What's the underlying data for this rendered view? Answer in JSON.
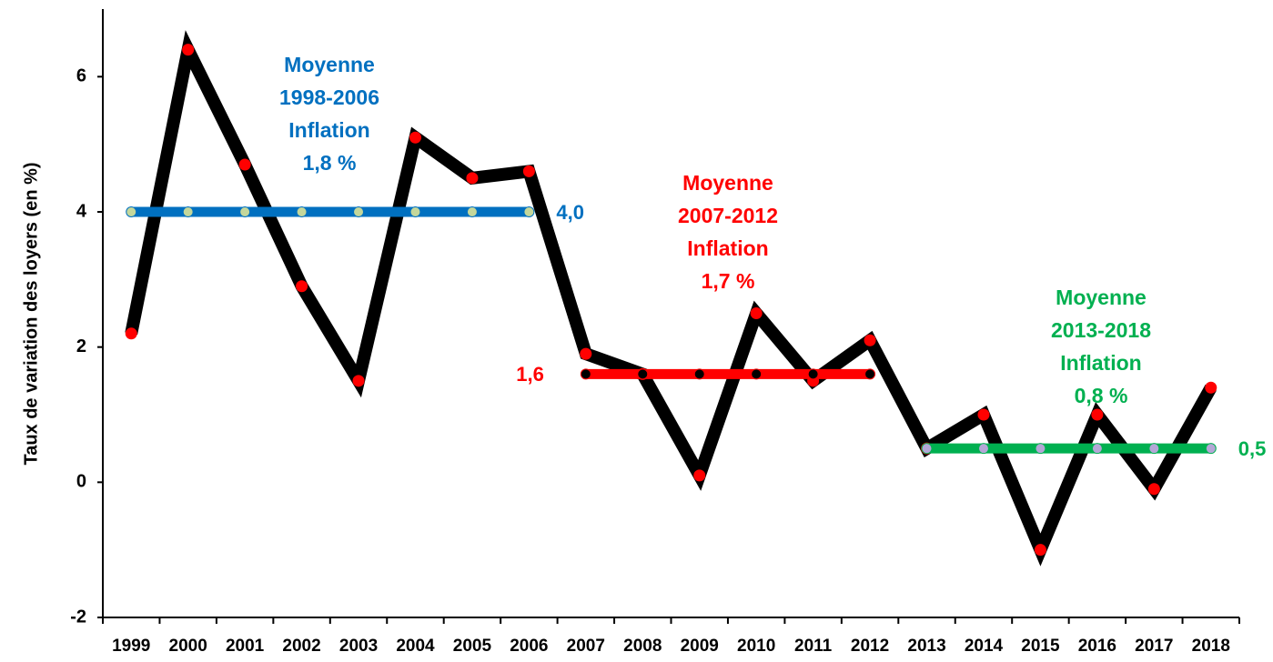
{
  "chart_data": {
    "type": "line",
    "ylabel": "Taux de variation des loyers  (en %)",
    "categories": [
      "1999",
      "2000",
      "2001",
      "2002",
      "2003",
      "2004",
      "2005",
      "2006",
      "2007",
      "2008",
      "2009",
      "2010",
      "2011",
      "2012",
      "2013",
      "2014",
      "2015",
      "2016",
      "2017",
      "2018"
    ],
    "ylim": [
      -2,
      7
    ],
    "yticks": [
      -2,
      0,
      2,
      4,
      6
    ],
    "grid": false,
    "series": [
      {
        "color": "#000000",
        "marker_color": "#ff0000",
        "values": [
          2.2,
          6.4,
          4.7,
          2.9,
          1.5,
          5.1,
          4.5,
          4.6,
          1.9,
          1.6,
          0.1,
          2.5,
          1.5,
          2.1,
          0.5,
          1.0,
          -1.0,
          1.0,
          -0.1,
          1.4
        ]
      },
      {
        "color": "#0070c0",
        "marker_color": "#c4d79b",
        "values": [
          4.0,
          4.0,
          4.0,
          4.0,
          4.0,
          4.0,
          4.0,
          4.0,
          null,
          null,
          null,
          null,
          null,
          null,
          null,
          null,
          null,
          null,
          null,
          null
        ],
        "label": "4,0",
        "label_side": "right"
      },
      {
        "color": "#ff0000",
        "marker_color": "#000000",
        "values": [
          null,
          null,
          null,
          null,
          null,
          null,
          null,
          null,
          1.6,
          1.6,
          1.6,
          1.6,
          1.6,
          1.6,
          null,
          null,
          null,
          null,
          null,
          null
        ],
        "label": "1,6",
        "label_side": "left"
      },
      {
        "color": "#00b050",
        "marker_color": "#b4a7d6",
        "values": [
          null,
          null,
          null,
          null,
          null,
          null,
          null,
          null,
          null,
          null,
          null,
          null,
          null,
          null,
          0.5,
          0.5,
          0.5,
          0.5,
          0.5,
          0.5
        ],
        "label": "0,5",
        "label_side": "right"
      }
    ],
    "annotations": [
      {
        "color": "#0070c0",
        "lines": [
          "Moyenne",
          "1998-2006",
          "Inflation",
          "1,8 %"
        ]
      },
      {
        "color": "#ff0000",
        "lines": [
          "Moyenne",
          "2007-2012",
          "Inflation",
          "1,7 %"
        ]
      },
      {
        "color": "#00b050",
        "lines": [
          "Moyenne",
          "2013-2018",
          "Inflation",
          "0,8 %"
        ]
      }
    ]
  }
}
